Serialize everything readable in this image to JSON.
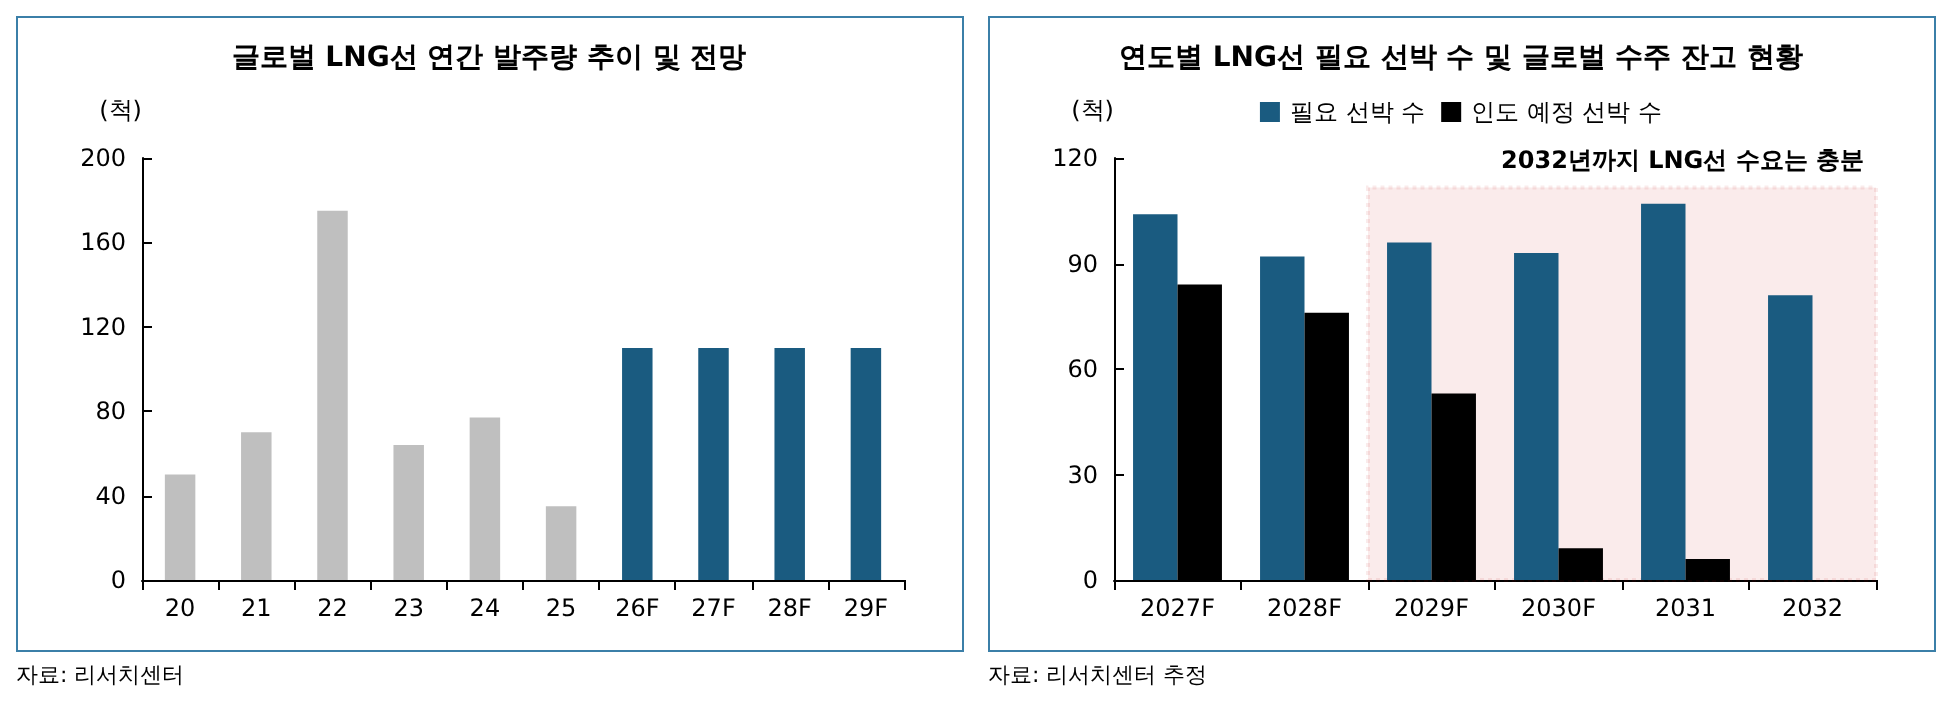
{
  "chart_data": [
    {
      "type": "bar",
      "title": "글로벌 LNG선 연간 발주량 추이 및 전망",
      "ylabel": "(척)",
      "categories": [
        "20",
        "21",
        "22",
        "23",
        "24",
        "25",
        "26F",
        "27F",
        "28F",
        "29F"
      ],
      "values": [
        50,
        70,
        175,
        64,
        77,
        35,
        110,
        110,
        110,
        110
      ],
      "colors": [
        "#bfbfbf",
        "#bfbfbf",
        "#bfbfbf",
        "#bfbfbf",
        "#bfbfbf",
        "#bfbfbf",
        "#1a5b80",
        "#1a5b80",
        "#1a5b80",
        "#1a5b80"
      ],
      "ylim": [
        0,
        200
      ],
      "yticks": [
        0,
        40,
        80,
        120,
        160,
        200
      ],
      "grid": false,
      "legend": false,
      "annotations": [
        "자료: 리서치센터"
      ]
    },
    {
      "type": "bar",
      "title": "연도별 LNG선 필요 선박 수 및 글로벌 수주 잔고 현황",
      "ylabel": "(척)",
      "categories": [
        "2027F",
        "2028F",
        "2029F",
        "2030F",
        "2031",
        "2032"
      ],
      "series": [
        {
          "name": "필요 선박 수",
          "color": "#1a5b80",
          "values": [
            104,
            92,
            96,
            93,
            107,
            81
          ]
        },
        {
          "name": "인도 예정 선박 수",
          "color": "#000000",
          "values": [
            84,
            76,
            53,
            9,
            6,
            null
          ]
        }
      ],
      "ylim": [
        0,
        120
      ],
      "yticks": [
        0,
        30,
        60,
        90,
        120
      ],
      "grid": false,
      "legend": "top",
      "bands": [
        {
          "axis": "x",
          "from": "2029F",
          "to": "2032",
          "label": "2032년까지 LNG선 수요는 충분",
          "color": "#c00000"
        }
      ],
      "annotations": [
        "자료: 리서치센터 추정"
      ]
    }
  ]
}
